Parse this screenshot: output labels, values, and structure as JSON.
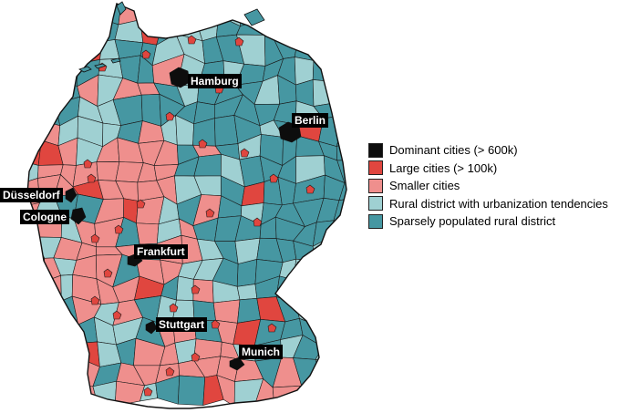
{
  "colors": {
    "dominant": "#0d0d0d",
    "large": "#e0463f",
    "smaller": "#ef8f8d",
    "rural_urban": "#9fd0d2",
    "sparse": "#4697a2",
    "border": "#1a1a1a"
  },
  "legend": [
    {
      "label": "Dominant cities (> 600k)",
      "color_key": "dominant"
    },
    {
      "label": "Large cities (> 100k)",
      "color_key": "large"
    },
    {
      "label": "Smaller cities",
      "color_key": "smaller"
    },
    {
      "label": "Rural district with urbanization tendencies",
      "color_key": "rural_urban"
    },
    {
      "label": "Sparsely populated rural district",
      "color_key": "sparse"
    }
  ],
  "cities": [
    {
      "name": "Hamburg"
    },
    {
      "name": "Berlin"
    },
    {
      "name": "Düsseldorf"
    },
    {
      "name": "Cologne"
    },
    {
      "name": "Frankfurt"
    },
    {
      "name": "Stuttgart"
    },
    {
      "name": "Munich"
    }
  ]
}
